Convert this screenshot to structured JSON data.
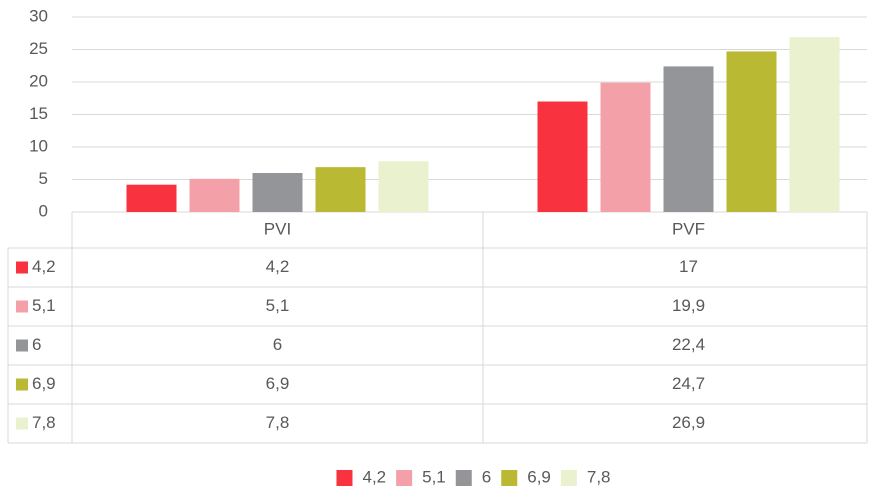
{
  "chart_data": {
    "type": "bar",
    "categories": [
      "PVI",
      "PVF"
    ],
    "series": [
      {
        "name": "4,2",
        "color": "#f8333f",
        "values": [
          4.2,
          17
        ],
        "value_labels": [
          "4,2",
          "17"
        ]
      },
      {
        "name": "5,1",
        "color": "#f4a0a8",
        "values": [
          5.1,
          19.9
        ],
        "value_labels": [
          "5,1",
          "19,9"
        ]
      },
      {
        "name": "6",
        "color": "#939598",
        "values": [
          6,
          22.4
        ],
        "value_labels": [
          "6",
          "22,4"
        ]
      },
      {
        "name": "6,9",
        "color": "#b9b933",
        "values": [
          6.9,
          24.7
        ],
        "value_labels": [
          "6,9",
          "24,7"
        ]
      },
      {
        "name": "7,8",
        "color": "#e9f1ce",
        "values": [
          7.8,
          26.9
        ],
        "value_labels": [
          "7,8",
          "26,9"
        ]
      }
    ],
    "ylim": [
      0,
      30
    ],
    "yticks": [
      0,
      5,
      10,
      15,
      20,
      25,
      30
    ],
    "grid": true,
    "legend": "bottom"
  }
}
